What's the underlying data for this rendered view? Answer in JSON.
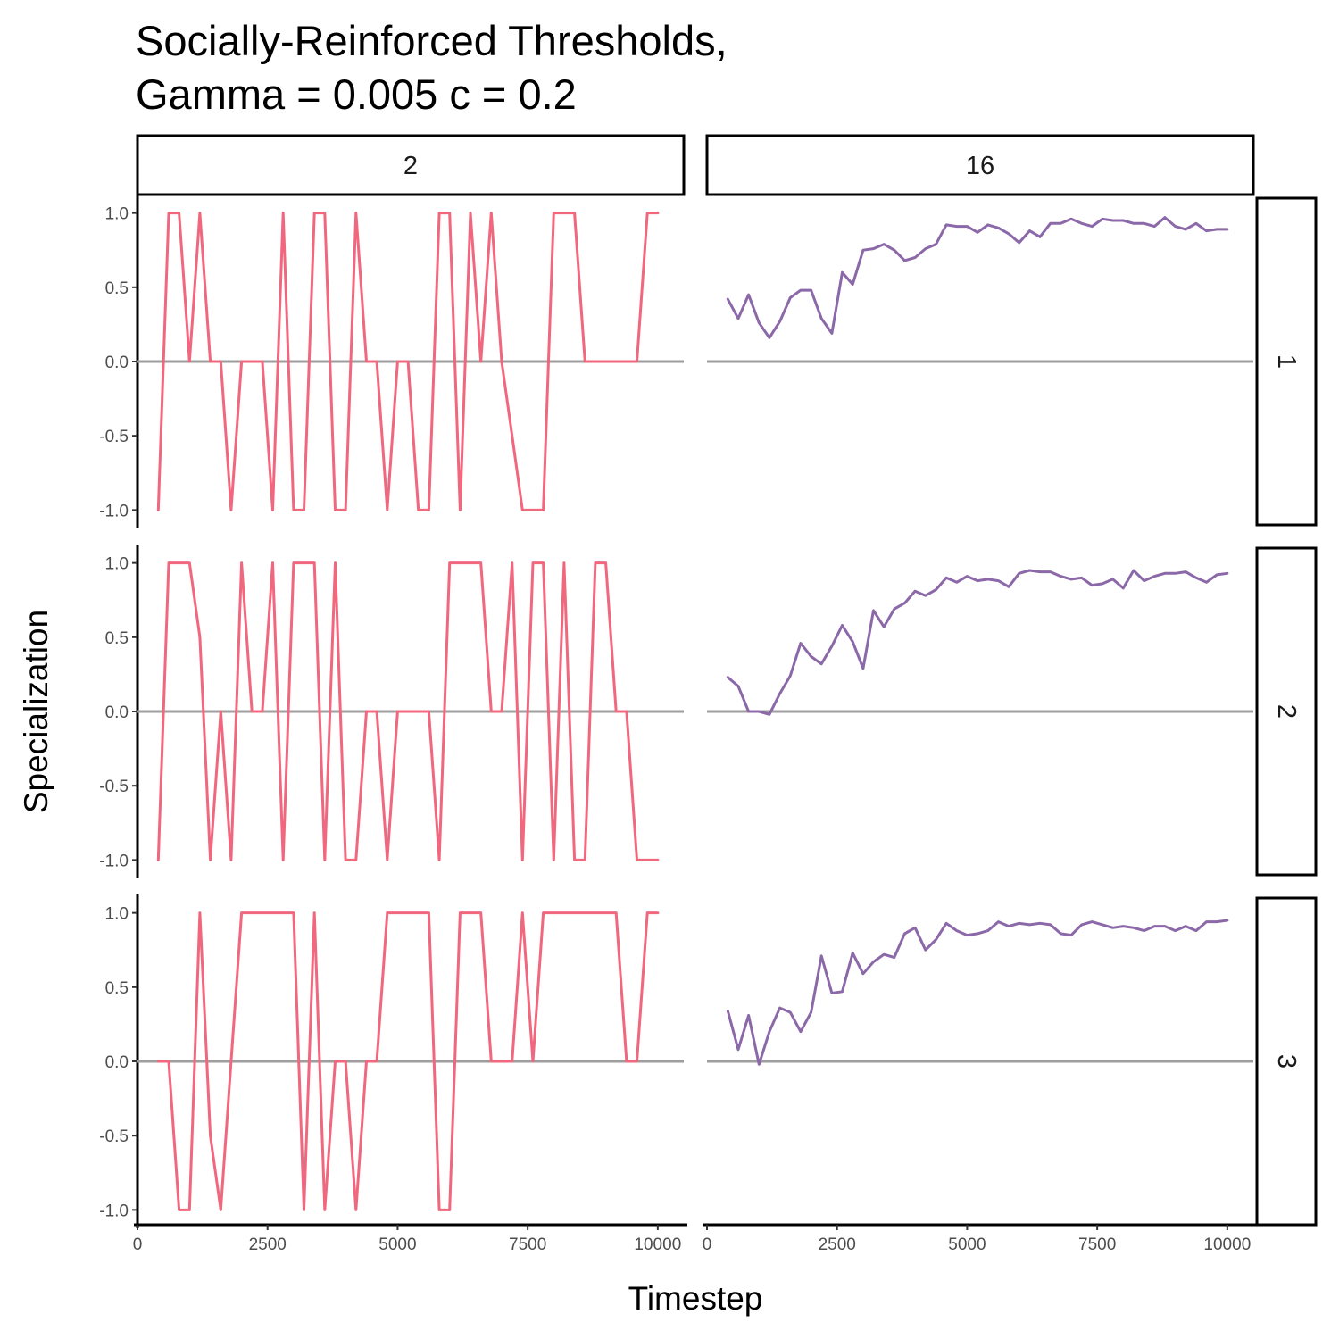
{
  "chart_data": {
    "type": "line",
    "title_lines": [
      "Socially-Reinforced Thresholds,",
      "Gamma = 0.005 c =  0.2"
    ],
    "xlabel": "Timestep",
    "ylabel": "Specialization",
    "xlim": [
      0,
      10500
    ],
    "ylim": [
      -1.1,
      1.1
    ],
    "x_ticks": [
      0,
      2500,
      5000,
      7500,
      10000
    ],
    "x_tick_labels": [
      "0",
      "2500",
      "5000",
      "7500",
      "10000"
    ],
    "y_ticks": [
      -1.0,
      -0.5,
      0.0,
      0.5,
      1.0
    ],
    "y_tick_labels": [
      "-1.0",
      "-0.5",
      "0.0",
      "0.5",
      "1.0"
    ],
    "col_facets": [
      "2",
      "16"
    ],
    "row_facets": [
      "1",
      "2",
      "3"
    ],
    "reference_line": 0,
    "colors": {
      "col_2": "#F0677E",
      "col_16": "#8B68A8",
      "reference": "#9E9E9E"
    },
    "panels": [
      {
        "row": "1",
        "col": "2",
        "x": [
          400,
          600,
          800,
          1000,
          1200,
          1400,
          1600,
          1800,
          2000,
          2200,
          2400,
          2600,
          2800,
          3000,
          3200,
          3400,
          3600,
          3800,
          4000,
          4200,
          4400,
          4600,
          4800,
          5000,
          5200,
          5400,
          5600,
          5800,
          6000,
          6200,
          6400,
          6600,
          6800,
          7000,
          7200,
          7400,
          7600,
          7800,
          8000,
          8200,
          8400,
          8600,
          8800,
          9000,
          9200,
          9400,
          9600,
          9800,
          10000
        ],
        "y": [
          -1,
          1,
          1,
          0,
          1,
          0,
          0,
          -1,
          0,
          0,
          0,
          -1,
          1,
          -1,
          -1,
          1,
          1,
          -1,
          -1,
          1,
          0,
          0,
          -1,
          0,
          0,
          -1,
          -1,
          1,
          1,
          -1,
          1,
          0,
          1,
          0,
          -0.5,
          -1,
          -1,
          -1,
          1,
          1,
          1,
          0,
          0,
          0,
          0,
          0,
          0,
          1,
          1
        ]
      },
      {
        "row": "1",
        "col": "16",
        "x": [
          400,
          600,
          800,
          1000,
          1200,
          1400,
          1600,
          1800,
          2000,
          2200,
          2400,
          2600,
          2800,
          3000,
          3200,
          3400,
          3600,
          3800,
          4000,
          4200,
          4400,
          4600,
          4800,
          5000,
          5200,
          5400,
          5600,
          5800,
          6000,
          6200,
          6400,
          6600,
          6800,
          7000,
          7200,
          7400,
          7600,
          7800,
          8000,
          8200,
          8400,
          8600,
          8800,
          9000,
          9200,
          9400,
          9600,
          9800,
          10000
        ],
        "y": [
          0.42,
          0.29,
          0.45,
          0.26,
          0.16,
          0.27,
          0.43,
          0.48,
          0.48,
          0.29,
          0.19,
          0.6,
          0.52,
          0.75,
          0.76,
          0.79,
          0.75,
          0.68,
          0.7,
          0.76,
          0.79,
          0.92,
          0.91,
          0.91,
          0.87,
          0.92,
          0.9,
          0.86,
          0.8,
          0.88,
          0.84,
          0.93,
          0.93,
          0.96,
          0.93,
          0.91,
          0.96,
          0.95,
          0.95,
          0.93,
          0.93,
          0.91,
          0.97,
          0.91,
          0.89,
          0.93,
          0.88,
          0.89,
          0.89
        ]
      },
      {
        "row": "2",
        "col": "2",
        "x": [
          400,
          600,
          800,
          1000,
          1200,
          1400,
          1600,
          1800,
          2000,
          2200,
          2400,
          2600,
          2800,
          3000,
          3200,
          3400,
          3600,
          3800,
          4000,
          4200,
          4400,
          4600,
          4800,
          5000,
          5200,
          5400,
          5600,
          5800,
          6000,
          6200,
          6400,
          6600,
          6800,
          7000,
          7200,
          7400,
          7600,
          7800,
          8000,
          8200,
          8400,
          8600,
          8800,
          9000,
          9200,
          9400,
          9600,
          9800,
          10000
        ],
        "y": [
          -1,
          1,
          1,
          1,
          0.5,
          -1,
          0,
          -1,
          1,
          0,
          0,
          1,
          -1,
          1,
          1,
          1,
          -1,
          1,
          -1,
          -1,
          0,
          0,
          -1,
          0,
          0,
          0,
          0,
          -1,
          1,
          1,
          1,
          1,
          0,
          0,
          1,
          -1,
          1,
          1,
          -1,
          1,
          -1,
          -1,
          1,
          1,
          0,
          0,
          -1,
          -1,
          -1
        ]
      },
      {
        "row": "2",
        "col": "16",
        "x": [
          400,
          600,
          800,
          1000,
          1200,
          1400,
          1600,
          1800,
          2000,
          2200,
          2400,
          2600,
          2800,
          3000,
          3200,
          3400,
          3600,
          3800,
          4000,
          4200,
          4400,
          4600,
          4800,
          5000,
          5200,
          5400,
          5600,
          5800,
          6000,
          6200,
          6400,
          6600,
          6800,
          7000,
          7200,
          7400,
          7600,
          7800,
          8000,
          8200,
          8400,
          8600,
          8800,
          9000,
          9200,
          9400,
          9600,
          9800,
          10000
        ],
        "y": [
          0.23,
          0.17,
          0,
          0,
          -0.02,
          0.12,
          0.24,
          0.46,
          0.37,
          0.32,
          0.44,
          0.58,
          0.47,
          0.29,
          0.68,
          0.57,
          0.69,
          0.73,
          0.81,
          0.78,
          0.82,
          0.9,
          0.87,
          0.91,
          0.88,
          0.89,
          0.88,
          0.84,
          0.93,
          0.95,
          0.94,
          0.94,
          0.91,
          0.89,
          0.9,
          0.85,
          0.86,
          0.89,
          0.83,
          0.95,
          0.88,
          0.91,
          0.93,
          0.93,
          0.94,
          0.9,
          0.87,
          0.92,
          0.93
        ]
      },
      {
        "row": "3",
        "col": "2",
        "x": [
          400,
          600,
          800,
          1000,
          1200,
          1400,
          1600,
          1800,
          2000,
          2200,
          2400,
          2600,
          2800,
          3000,
          3200,
          3400,
          3600,
          3800,
          4000,
          4200,
          4400,
          4600,
          4800,
          5000,
          5200,
          5400,
          5600,
          5800,
          6000,
          6200,
          6400,
          6600,
          6800,
          7000,
          7200,
          7400,
          7600,
          7800,
          8000,
          8200,
          8400,
          8600,
          8800,
          9000,
          9200,
          9400,
          9600,
          9800,
          10000
        ],
        "y": [
          0,
          0,
          -1,
          -1,
          1,
          -0.5,
          -1,
          0,
          1,
          1,
          1,
          1,
          1,
          1,
          -1,
          1,
          -1,
          0,
          0,
          -1,
          0,
          0,
          1,
          1,
          1,
          1,
          1,
          -1,
          -1,
          1,
          1,
          1,
          0,
          0,
          0,
          1,
          0,
          1,
          1,
          1,
          1,
          1,
          1,
          1,
          1,
          0,
          0,
          1,
          1
        ]
      },
      {
        "row": "3",
        "col": "16",
        "x": [
          400,
          600,
          800,
          1000,
          1200,
          1400,
          1600,
          1800,
          2000,
          2200,
          2400,
          2600,
          2800,
          3000,
          3200,
          3400,
          3600,
          3800,
          4000,
          4200,
          4400,
          4600,
          4800,
          5000,
          5200,
          5400,
          5600,
          5800,
          6000,
          6200,
          6400,
          6600,
          6800,
          7000,
          7200,
          7400,
          7600,
          7800,
          8000,
          8200,
          8400,
          8600,
          8800,
          9000,
          9200,
          9400,
          9600,
          9800,
          10000
        ],
        "y": [
          0.34,
          0.08,
          0.31,
          -0.02,
          0.2,
          0.36,
          0.33,
          0.2,
          0.33,
          0.71,
          0.46,
          0.47,
          0.73,
          0.59,
          0.67,
          0.72,
          0.7,
          0.86,
          0.9,
          0.75,
          0.82,
          0.93,
          0.88,
          0.85,
          0.86,
          0.88,
          0.94,
          0.91,
          0.93,
          0.92,
          0.93,
          0.92,
          0.86,
          0.85,
          0.92,
          0.94,
          0.92,
          0.9,
          0.91,
          0.9,
          0.88,
          0.91,
          0.91,
          0.88,
          0.91,
          0.88,
          0.94,
          0.94,
          0.95
        ]
      }
    ]
  }
}
